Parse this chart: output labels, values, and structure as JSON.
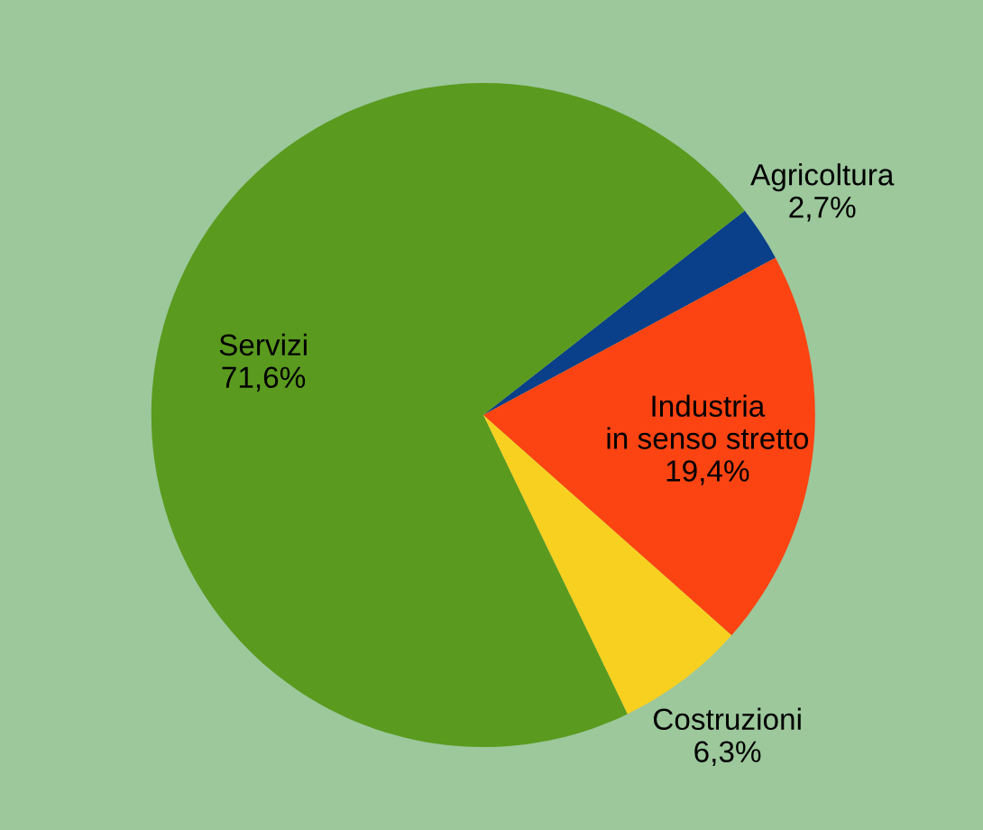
{
  "chart_data": {
    "type": "pie",
    "categories": [
      "Agricoltura",
      "Industria\nin senso stretto",
      "Costruzioni",
      "Servizi"
    ],
    "values": [
      2.7,
      19.4,
      6.3,
      71.6
    ],
    "value_labels": [
      "2,7%",
      "19,4%",
      "6,3%",
      "71,6%"
    ],
    "colors": [
      "#0a3f8a",
      "#fc4412",
      "#f8d020",
      "#5a9a1e"
    ],
    "legend": false
  }
}
